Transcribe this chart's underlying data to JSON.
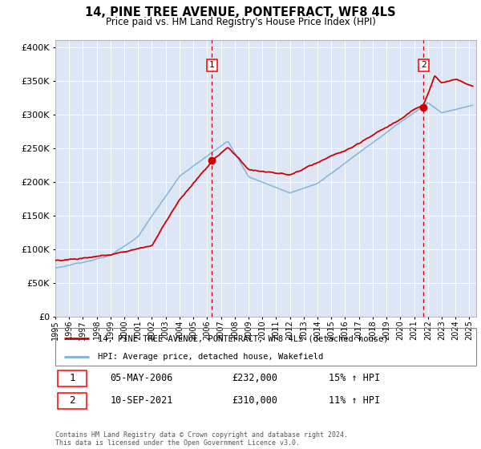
{
  "title": "14, PINE TREE AVENUE, PONTEFRACT, WF8 4LS",
  "subtitle": "Price paid vs. HM Land Registry's House Price Index (HPI)",
  "ytick_values": [
    0,
    50000,
    100000,
    150000,
    200000,
    250000,
    300000,
    350000,
    400000
  ],
  "ylim": [
    0,
    410000
  ],
  "xlim_start": 1995.0,
  "xlim_end": 2025.5,
  "transaction1": {
    "date_num": 2006.35,
    "price": 232000,
    "label": "1",
    "table_date": "05-MAY-2006",
    "table_price": "£232,000",
    "table_hpi": "15% ↑ HPI"
  },
  "transaction2": {
    "date_num": 2021.69,
    "price": 310000,
    "label": "2",
    "table_date": "10-SEP-2021",
    "table_price": "£310,000",
    "table_hpi": "11% ↑ HPI"
  },
  "legend_label_red": "14, PINE TREE AVENUE, PONTEFRACT, WF8 4LS (detached house)",
  "legend_label_blue": "HPI: Average price, detached house, Wakefield",
  "footer": "Contains HM Land Registry data © Crown copyright and database right 2024.\nThis data is licensed under the Open Government Licence v3.0.",
  "plot_bg_color": "#dce6f5",
  "red_color": "#cc0000",
  "blue_color": "#7bafd4",
  "dashed_color": "#cc0000",
  "grid_color": "#ffffff",
  "xtick_years": [
    1995,
    1996,
    1997,
    1998,
    1999,
    2000,
    2001,
    2002,
    2003,
    2004,
    2005,
    2006,
    2007,
    2008,
    2009,
    2010,
    2011,
    2012,
    2013,
    2014,
    2015,
    2016,
    2017,
    2018,
    2019,
    2020,
    2021,
    2022,
    2023,
    2024,
    2025
  ]
}
